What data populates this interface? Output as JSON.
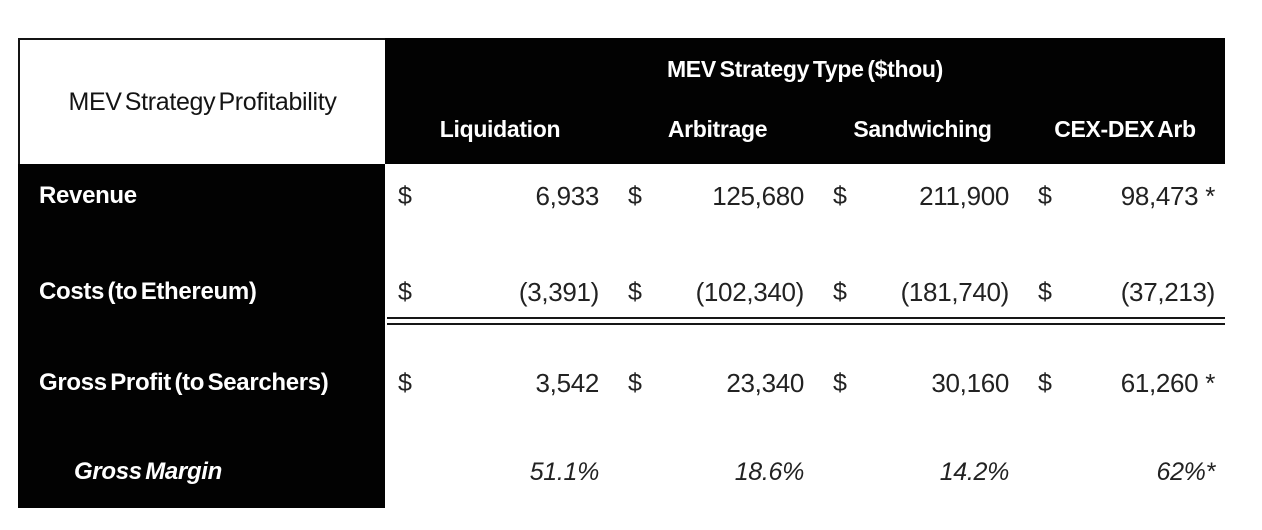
{
  "chart_data": {
    "type": "table",
    "title": "MEV Strategy Profitability",
    "column_group_header": "MEV Strategy Type ($thou)",
    "units": "$thou",
    "columns": [
      "Liquidation",
      "Arbitrage",
      "Sandwiching",
      "CEX-DEX Arb"
    ],
    "rows": [
      {
        "label": "Revenue",
        "currency": "$",
        "display": [
          "6,933",
          "125,680",
          "211,900",
          "98,473 *"
        ],
        "values": [
          6933,
          125680,
          211900,
          98473
        ]
      },
      {
        "label": "Costs (to Ethereum)",
        "currency": "$",
        "display": [
          "(3,391)",
          "(102,340)",
          "(181,740)",
          "(37,213)"
        ],
        "values": [
          -3391,
          -102340,
          -181740,
          -37213
        ]
      },
      {
        "label": "Gross Profit (to Searchers)",
        "currency": "$",
        "display": [
          "3,542",
          "23,340",
          "30,160",
          "61,260 *"
        ],
        "values": [
          3542,
          23340,
          30160,
          61260
        ]
      },
      {
        "label": "Gross Margin",
        "currency": "",
        "display": [
          "51.1%",
          "18.6%",
          "14.2%",
          "62%*"
        ],
        "values_percent": [
          51.1,
          18.6,
          14.2,
          62
        ]
      }
    ],
    "footnote_marker": "*"
  },
  "colors": {
    "header_bg": "#020202",
    "body_bg": "#ffffff",
    "header_text": "#ffffff",
    "body_text": "#222222"
  }
}
